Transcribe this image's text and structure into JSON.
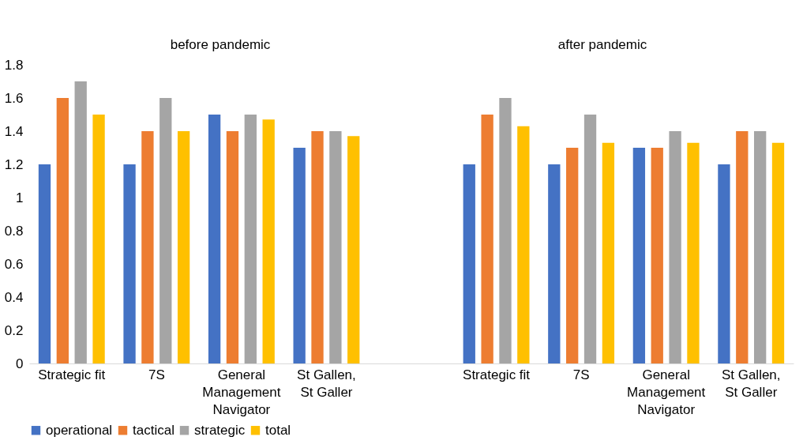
{
  "chart_data": {
    "type": "bar",
    "annotations": [
      "before pandemic",
      "after pandemic"
    ],
    "categories": [
      "Strategic fit",
      "7S",
      "General Management Navigator",
      "St Gallen, St Galler",
      null,
      "Strategic fit",
      "7S",
      "General Management Navigator",
      "St Gallen, St Galler"
    ],
    "series": [
      {
        "name": "operational",
        "color": "#4472c4",
        "values": [
          1.2,
          1.2,
          1.5,
          1.3,
          null,
          1.2,
          1.2,
          1.3,
          1.2
        ]
      },
      {
        "name": "tactical",
        "color": "#ed7d31",
        "values": [
          1.6,
          1.4,
          1.4,
          1.4,
          null,
          1.5,
          1.3,
          1.3,
          1.4
        ]
      },
      {
        "name": "strategic",
        "color": "#a5a5a5",
        "values": [
          1.7,
          1.6,
          1.5,
          1.4,
          null,
          1.6,
          1.5,
          1.4,
          1.4
        ]
      },
      {
        "name": "total",
        "color": "#ffc000",
        "values": [
          1.5,
          1.4,
          1.47,
          1.37,
          null,
          1.43,
          1.33,
          1.33,
          1.33
        ]
      }
    ],
    "ylim": [
      0,
      1.8
    ],
    "yticks": [
      0,
      0.2,
      0.4,
      0.6,
      0.8,
      1,
      1.2,
      1.4,
      1.6,
      1.8
    ],
    "grid": false,
    "legend": "bottom"
  }
}
